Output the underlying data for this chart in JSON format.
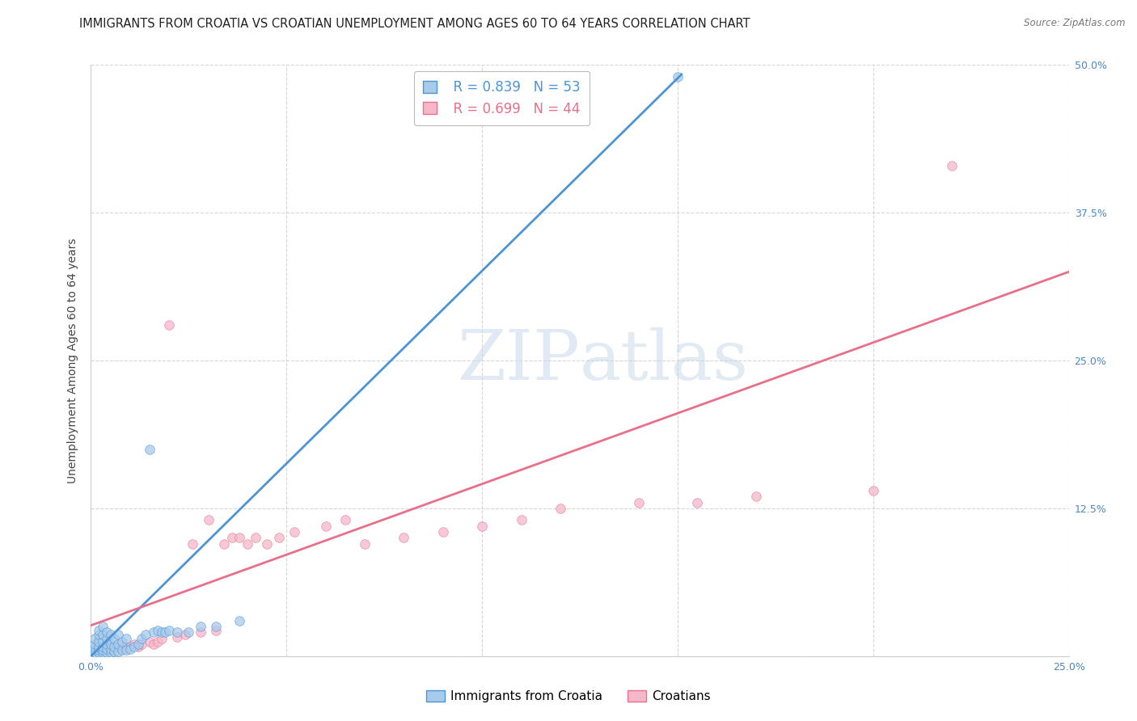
{
  "title": "IMMIGRANTS FROM CROATIA VS CROATIAN UNEMPLOYMENT AMONG AGES 60 TO 64 YEARS CORRELATION CHART",
  "source": "Source: ZipAtlas.com",
  "ylabel": "Unemployment Among Ages 60 to 64 years",
  "xlim": [
    0,
    0.25
  ],
  "ylim": [
    0,
    0.5
  ],
  "xticks": [
    0.0,
    0.05,
    0.1,
    0.15,
    0.2,
    0.25
  ],
  "yticks": [
    0.0,
    0.125,
    0.25,
    0.375,
    0.5
  ],
  "xticklabels": [
    "0.0%",
    "",
    "",
    "",
    "",
    "25.0%"
  ],
  "yticklabels": [
    "",
    "12.5%",
    "25.0%",
    "37.5%",
    "50.0%"
  ],
  "blue_R": 0.839,
  "blue_N": 53,
  "pink_R": 0.699,
  "pink_N": 44,
  "blue_color": "#a8caeb",
  "pink_color": "#f5b8cb",
  "blue_line_color": "#4d94d4",
  "pink_line_color": "#e8708a",
  "legend_label_blue": "Immigrants from Croatia",
  "legend_label_pink": "Croatians",
  "watermark_zip": "ZIP",
  "watermark_atlas": "atlas",
  "blue_scatter_x": [
    0.001,
    0.001,
    0.001,
    0.001,
    0.001,
    0.002,
    0.002,
    0.002,
    0.002,
    0.002,
    0.002,
    0.003,
    0.003,
    0.003,
    0.003,
    0.003,
    0.003,
    0.004,
    0.004,
    0.004,
    0.004,
    0.004,
    0.005,
    0.005,
    0.005,
    0.005,
    0.006,
    0.006,
    0.006,
    0.007,
    0.007,
    0.007,
    0.008,
    0.008,
    0.009,
    0.009,
    0.01,
    0.011,
    0.012,
    0.013,
    0.014,
    0.015,
    0.016,
    0.017,
    0.018,
    0.019,
    0.02,
    0.022,
    0.025,
    0.028,
    0.032,
    0.038,
    0.15
  ],
  "blue_scatter_y": [
    0.003,
    0.005,
    0.007,
    0.01,
    0.015,
    0.003,
    0.005,
    0.008,
    0.012,
    0.018,
    0.022,
    0.003,
    0.005,
    0.008,
    0.012,
    0.018,
    0.025,
    0.003,
    0.006,
    0.01,
    0.015,
    0.02,
    0.003,
    0.006,
    0.01,
    0.018,
    0.004,
    0.008,
    0.015,
    0.004,
    0.01,
    0.018,
    0.005,
    0.012,
    0.005,
    0.015,
    0.006,
    0.008,
    0.01,
    0.015,
    0.018,
    0.175,
    0.02,
    0.022,
    0.02,
    0.02,
    0.022,
    0.02,
    0.02,
    0.025,
    0.025,
    0.03,
    0.49
  ],
  "pink_scatter_x": [
    0.002,
    0.003,
    0.004,
    0.005,
    0.006,
    0.007,
    0.008,
    0.009,
    0.01,
    0.011,
    0.012,
    0.013,
    0.015,
    0.016,
    0.017,
    0.018,
    0.02,
    0.022,
    0.024,
    0.026,
    0.028,
    0.03,
    0.032,
    0.034,
    0.036,
    0.038,
    0.04,
    0.042,
    0.045,
    0.048,
    0.052,
    0.06,
    0.065,
    0.07,
    0.08,
    0.09,
    0.1,
    0.11,
    0.12,
    0.14,
    0.155,
    0.17,
    0.2,
    0.22
  ],
  "pink_scatter_y": [
    0.005,
    0.006,
    0.007,
    0.006,
    0.008,
    0.007,
    0.008,
    0.007,
    0.008,
    0.01,
    0.008,
    0.01,
    0.012,
    0.01,
    0.012,
    0.015,
    0.28,
    0.016,
    0.018,
    0.095,
    0.02,
    0.115,
    0.022,
    0.095,
    0.1,
    0.1,
    0.095,
    0.1,
    0.095,
    0.1,
    0.105,
    0.11,
    0.115,
    0.095,
    0.1,
    0.105,
    0.11,
    0.115,
    0.125,
    0.13,
    0.13,
    0.135,
    0.14,
    0.415
  ],
  "blue_line_x": [
    0.0,
    0.151
  ],
  "blue_line_y": [
    0.0,
    0.492
  ],
  "pink_line_x": [
    0.0,
    0.25
  ],
  "pink_line_y": [
    0.026,
    0.325
  ],
  "background_color": "#ffffff",
  "grid_color": "#cccccc",
  "title_fontsize": 10.5,
  "axis_label_fontsize": 10,
  "tick_fontsize": 9,
  "tick_color": "#4a86c8",
  "source_fontsize": 8.5
}
